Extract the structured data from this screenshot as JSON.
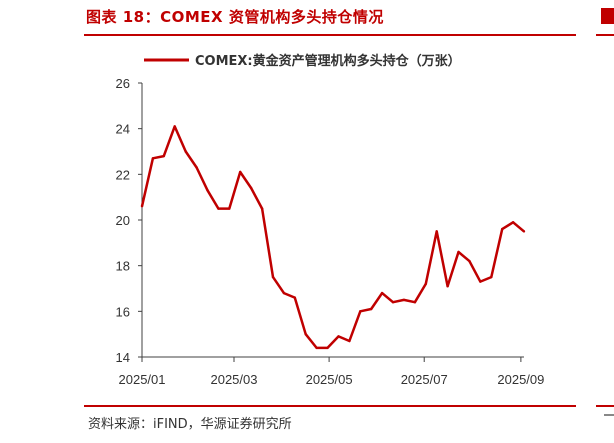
{
  "figure": {
    "title": "图表 18：COMEX 资管机构多头持仓情况",
    "source": "资料来源：iFIND，华源证券研究所"
  },
  "colors": {
    "accent": "#c00000",
    "line": "#c00000",
    "axis": "#404040"
  },
  "chart_data": {
    "type": "line",
    "title": "",
    "xlabel": "",
    "ylabel": "",
    "ylim": [
      14,
      26
    ],
    "yticks": [
      "14",
      "16",
      "18",
      "20",
      "22",
      "24",
      "26"
    ],
    "xticks": [
      "2025/01",
      "2025/03",
      "2025/05",
      "2025/07",
      "2025/09"
    ],
    "legend_position": "top",
    "grid": false,
    "series": [
      {
        "name": "COMEX:黄金资产管理机构多头持仓（万张）",
        "color": "#c00000",
        "points": [
          [
            "2025/01/01",
            20.6
          ],
          [
            "2025/01/08",
            22.7
          ],
          [
            "2025/01/15",
            22.8
          ],
          [
            "2025/01/22",
            24.1
          ],
          [
            "2025/01/29",
            23.0
          ],
          [
            "2025/02/05",
            22.3
          ],
          [
            "2025/02/12",
            21.3
          ],
          [
            "2025/02/19",
            20.5
          ],
          [
            "2025/02/26",
            20.5
          ],
          [
            "2025/03/05",
            22.1
          ],
          [
            "2025/03/12",
            21.4
          ],
          [
            "2025/03/19",
            20.5
          ],
          [
            "2025/03/26",
            17.5
          ],
          [
            "2025/04/02",
            16.8
          ],
          [
            "2025/04/09",
            16.6
          ],
          [
            "2025/04/16",
            15.0
          ],
          [
            "2025/04/23",
            14.4
          ],
          [
            "2025/04/30",
            14.4
          ],
          [
            "2025/05/07",
            14.9
          ],
          [
            "2025/05/14",
            14.7
          ],
          [
            "2025/05/21",
            16.0
          ],
          [
            "2025/05/28",
            16.1
          ],
          [
            "2025/06/04",
            16.8
          ],
          [
            "2025/06/11",
            16.4
          ],
          [
            "2025/06/18",
            16.5
          ],
          [
            "2025/06/25",
            16.4
          ],
          [
            "2025/07/02",
            17.2
          ],
          [
            "2025/07/09",
            19.5
          ],
          [
            "2025/07/16",
            17.1
          ],
          [
            "2025/07/23",
            18.6
          ],
          [
            "2025/07/30",
            18.2
          ],
          [
            "2025/08/06",
            17.3
          ],
          [
            "2025/08/13",
            17.5
          ],
          [
            "2025/08/20",
            19.6
          ],
          [
            "2025/08/27",
            19.9
          ],
          [
            "2025/09/03",
            19.5
          ]
        ]
      }
    ]
  }
}
